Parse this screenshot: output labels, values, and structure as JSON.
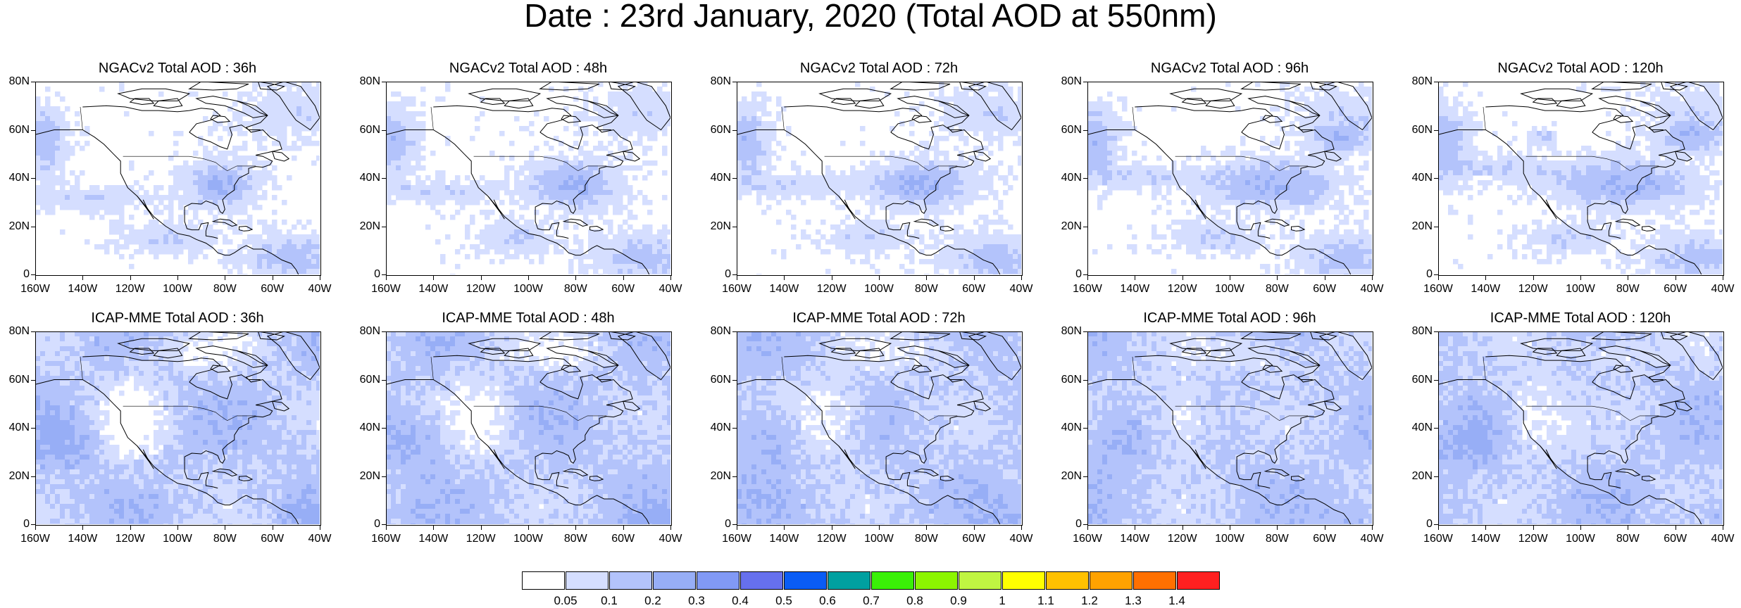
{
  "title": "Date : 23rd January, 2020 (Total AOD at 550nm)",
  "lat_labels": [
    "80N",
    "60N",
    "40N",
    "20N",
    "0"
  ],
  "lon_labels": [
    "160W",
    "140W",
    "120W",
    "100W",
    "80W",
    "60W",
    "40W"
  ],
  "panels": [
    {
      "title": "NGACv2 Total AOD : 36h"
    },
    {
      "title": "NGACv2 Total AOD : 48h"
    },
    {
      "title": "NGACv2 Total AOD : 72h"
    },
    {
      "title": "NGACv2 Total AOD : 96h"
    },
    {
      "title": "NGACv2 Total AOD : 120h"
    },
    {
      "title": "ICAP-MME Total AOD : 36h"
    },
    {
      "title": "ICAP-MME Total AOD : 48h"
    },
    {
      "title": "ICAP-MME Total AOD : 72h"
    },
    {
      "title": "ICAP-MME Total AOD : 96h"
    },
    {
      "title": "ICAP-MME Total AOD : 120h"
    }
  ],
  "colorbar": {
    "labels": [
      "0.05",
      "0.1",
      "0.2",
      "0.3",
      "0.4",
      "0.5",
      "0.6",
      "0.7",
      "0.8",
      "0.9",
      "1",
      "1.1",
      "1.2",
      "1.3",
      "1.4"
    ],
    "colors": [
      "#ffffff",
      "#d5deff",
      "#b3c3fb",
      "#97aef6",
      "#8199f5",
      "#6670ee",
      "#0a5cf5",
      "#00a0a0",
      "#3af007",
      "#8cf500",
      "#c0f542",
      "#ffff00",
      "#ffc100",
      "#ffa200",
      "#ff7000",
      "#ff2020"
    ]
  }
}
